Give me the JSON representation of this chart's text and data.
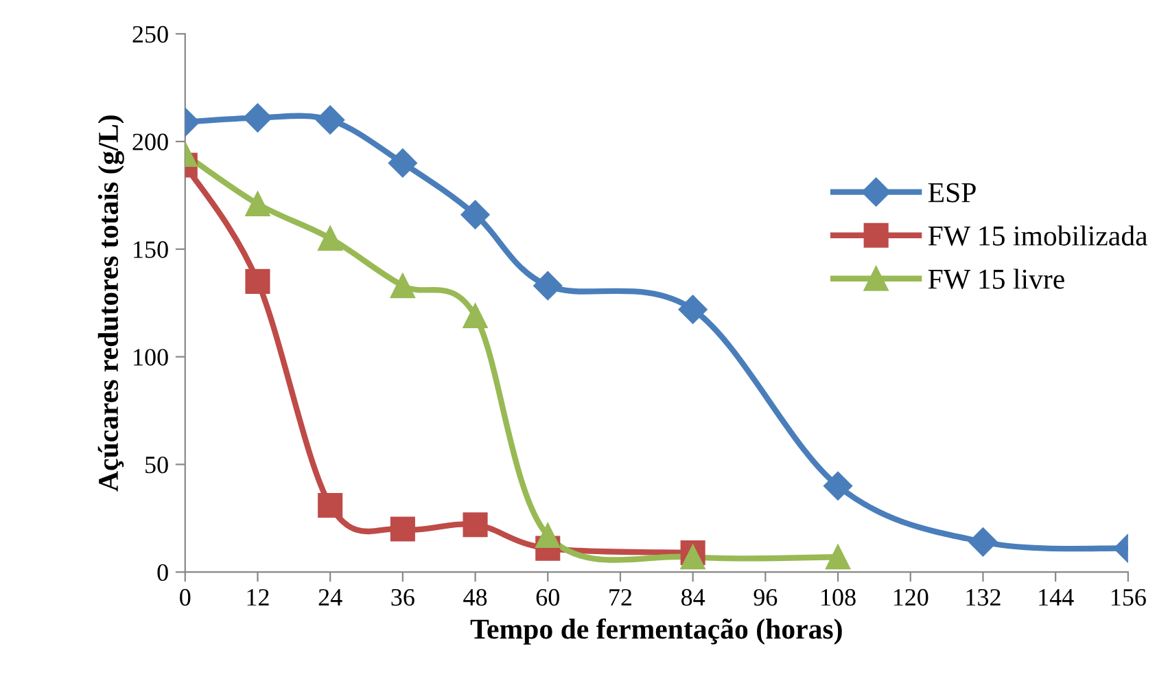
{
  "chart_data": {
    "type": "line",
    "xlabel": "Tempo de fermentação (horas)",
    "ylabel": "Açúcares redutores totais (g/L)",
    "xlim": [
      0,
      156
    ],
    "xticks": [
      0,
      12,
      24,
      36,
      48,
      60,
      72,
      84,
      96,
      108,
      120,
      132,
      144,
      156
    ],
    "ylim": [
      0,
      250
    ],
    "yticks": [
      0,
      50,
      100,
      150,
      200,
      250
    ],
    "grid": false,
    "legend": "right",
    "series": [
      {
        "name": "ESP",
        "color": "#4a7ebb",
        "marker": "diamond",
        "x": [
          0,
          12,
          24,
          36,
          48,
          60,
          84,
          108,
          132,
          156
        ],
        "values": [
          209,
          211,
          210,
          190,
          166,
          133,
          122,
          40,
          14,
          11
        ]
      },
      {
        "name": "FW 15 imobilizada",
        "color": "#be4b48",
        "marker": "square",
        "x": [
          0,
          12,
          24,
          36,
          48,
          60,
          84
        ],
        "values": [
          189,
          135,
          31,
          20,
          22,
          11,
          9
        ]
      },
      {
        "name": "FW 15 livre",
        "color": "#98b954",
        "marker": "triangle",
        "x": [
          0,
          12,
          24,
          36,
          48,
          60,
          84,
          108
        ],
        "values": [
          194,
          171,
          155,
          133,
          119,
          17,
          7,
          7
        ]
      }
    ]
  }
}
